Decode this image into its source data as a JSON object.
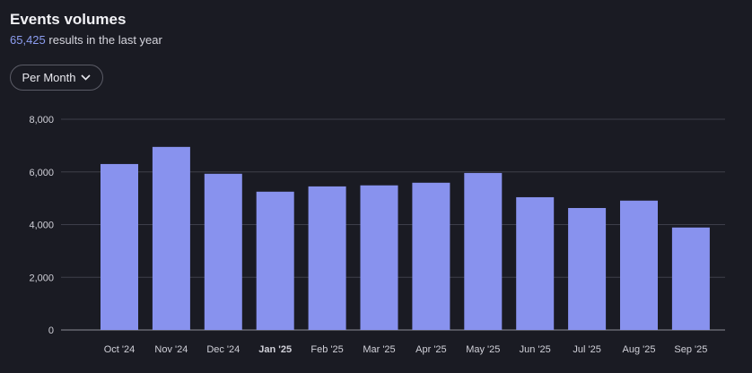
{
  "header": {
    "title": "Events volumes",
    "count": "65,425",
    "count_suffix": "results in the last year"
  },
  "granularity": {
    "selected": "Per Month"
  },
  "colors": {
    "bar": "#8892ee",
    "grid": "#3e3f4a",
    "accent": "#8c9df0"
  },
  "chart_data": {
    "type": "bar",
    "title": "Events volumes",
    "categories": [
      "Oct '24",
      "Nov '24",
      "Dec '24",
      "Jan '25",
      "Feb '25",
      "Mar '25",
      "Apr '25",
      "May '25",
      "Jun '25",
      "Jul '25",
      "Aug '25",
      "Sep '25"
    ],
    "values": [
      6300,
      6950,
      5930,
      5250,
      5450,
      5490,
      5590,
      5960,
      5040,
      4630,
      4910,
      3890
    ],
    "highlight_category": "Jan '25",
    "yticks": [
      "0",
      "2,000",
      "4,000",
      "6,000",
      "8,000"
    ],
    "ylim": [
      0,
      8000
    ],
    "xlabel": "",
    "ylabel": "",
    "grid": true
  }
}
